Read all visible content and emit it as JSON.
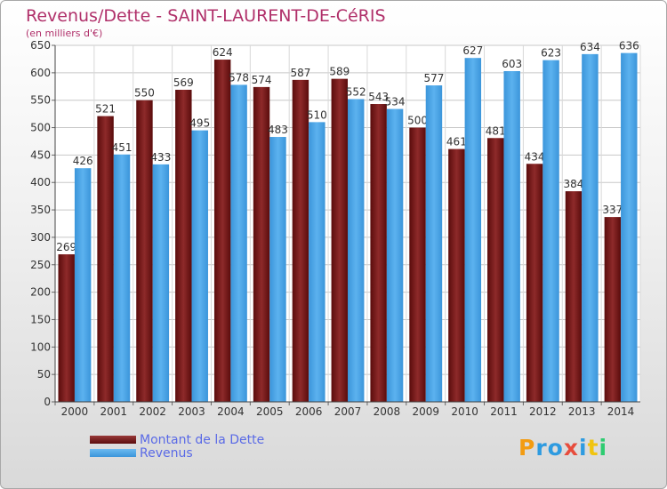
{
  "chart_data": {
    "type": "bar",
    "title": "Revenus/Dette - SAINT-LAURENT-DE-CéRIS",
    "subtitle": "(en milliers d'€)",
    "categories": [
      "2000",
      "2001",
      "2002",
      "2003",
      "2004",
      "2005",
      "2006",
      "2007",
      "2008",
      "2009",
      "2010",
      "2011",
      "2012",
      "2013",
      "2014"
    ],
    "series": [
      {
        "name": "Montant de la Dette",
        "color": "#7a1a1a",
        "values": [
          269,
          521,
          550,
          569,
          624,
          574,
          587,
          589,
          543,
          500,
          461,
          481,
          434,
          384,
          337
        ]
      },
      {
        "name": "Revenus",
        "color": "#4aa3e6",
        "values": [
          426,
          451,
          433,
          495,
          578,
          483,
          510,
          552,
          534,
          577,
          627,
          603,
          623,
          634,
          636
        ]
      }
    ],
    "ylim": [
      0,
      650
    ],
    "yticks": [
      0,
      50,
      100,
      150,
      200,
      250,
      300,
      350,
      400,
      450,
      500,
      550,
      600,
      650
    ],
    "grid": true,
    "legend_position": "bottom-left"
  },
  "logo": {
    "text": "Proxiti",
    "letters": [
      "P",
      "r",
      "o",
      "x",
      "i",
      "t",
      "i"
    ],
    "colors": [
      "#f39c12",
      "#2e9be0",
      "#2e9be0",
      "#e74c3c",
      "#2e9be0",
      "#f1c40f",
      "#2ecc71"
    ]
  }
}
